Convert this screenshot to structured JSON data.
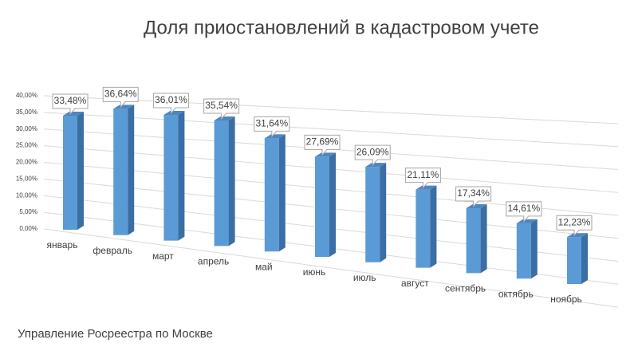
{
  "chart_data": {
    "type": "bar3d",
    "title": "Доля приостановлений в кадастровом учете",
    "footer": "Управление Росреестра по Москве",
    "categories": [
      "январь",
      "февраль",
      "март",
      "апрель",
      "май",
      "июнь",
      "июль",
      "август",
      "сентябрь",
      "октябрь",
      "ноябрь"
    ],
    "values": [
      33.48,
      36.64,
      36.01,
      35.54,
      31.64,
      27.69,
      26.09,
      21.11,
      17.34,
      14.61,
      12.23
    ],
    "value_labels": [
      "33,48%",
      "36,64%",
      "36,01%",
      "35,54%",
      "31,64%",
      "27,69%",
      "26,09%",
      "21,11%",
      "17,34%",
      "14,61%",
      "12,23%"
    ],
    "color": "#5b9bd5",
    "ylim": [
      0,
      40
    ],
    "yticks": [
      {
        "value": 0,
        "label": "0,00%"
      },
      {
        "value": 5,
        "label": "5,00%"
      },
      {
        "value": 10,
        "label": "10,00%"
      },
      {
        "value": 15,
        "label": "15,00%"
      },
      {
        "value": 20,
        "label": "20,00%"
      },
      {
        "value": 25,
        "label": "25,00%"
      },
      {
        "value": 30,
        "label": "30,00%"
      },
      {
        "value": 35,
        "label": "35,00%"
      },
      {
        "value": 40,
        "label": "40,00%"
      }
    ],
    "grid": true
  }
}
